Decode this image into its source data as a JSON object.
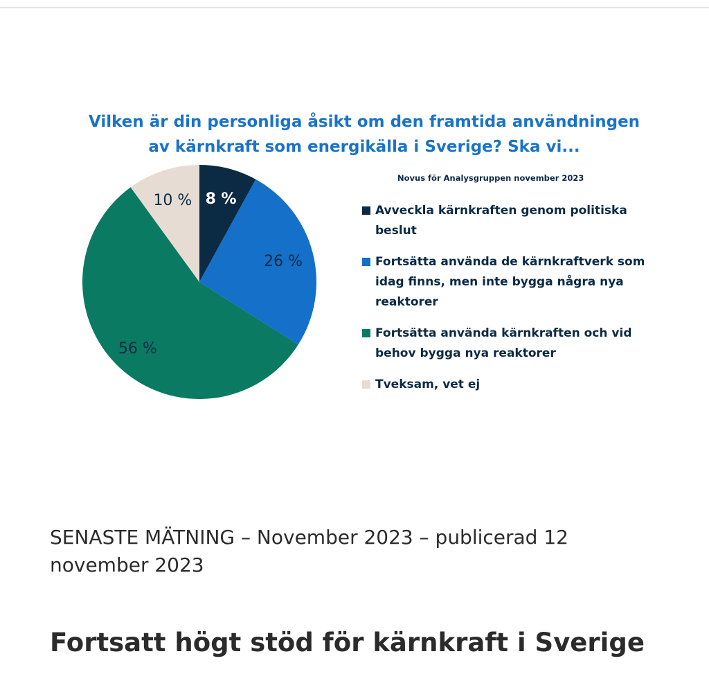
{
  "chart_data": {
    "type": "pie",
    "title_lines": [
      "Vilken är din personliga åsikt om den framtida användningen",
      "av kärnkraft som energikälla i Sverige? Ska vi..."
    ],
    "subtitle": "Novus för Analysgruppen november 2023",
    "categories": [
      "Avveckla kärnkraften genom politiska beslut",
      "Fortsätta använda de kärnkraftverk som idag finns, men inte bygga några nya reaktorer",
      "Fortsätta använda kärnkraften och vid behov bygga nya reaktorer",
      "Tveksam, vet ej"
    ],
    "values": [
      8,
      26,
      56,
      10
    ],
    "value_labels": [
      "8 %",
      "26 %",
      "56 %",
      "10 %"
    ],
    "colors": [
      "#0b2a44",
      "#1470c8",
      "#0b7a62",
      "#e7dcd3"
    ],
    "label_colors": [
      "#ffffff",
      "#0b2a44",
      "#0b2a44",
      "#0b2a44"
    ],
    "legend_position": "right"
  },
  "article": {
    "date_line": "SENASTE MÄTNING – November 2023 – publicerad 12 november 2023",
    "headline": "Fortsatt högt stöd för kärnkraft i Sverige"
  }
}
